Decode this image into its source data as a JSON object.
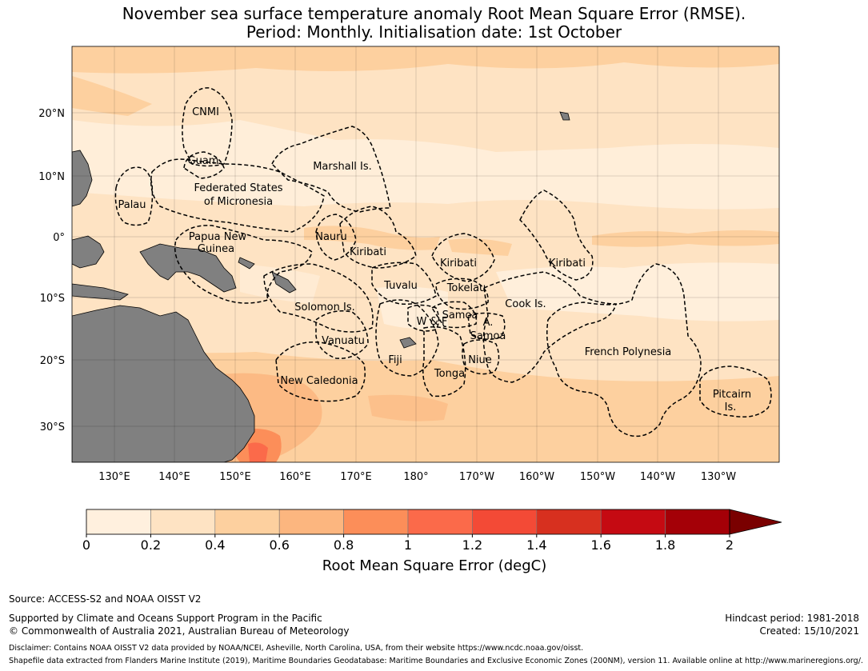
{
  "title": {
    "line1": "November sea surface temperature anomaly Root Mean Square Error (RMSE).",
    "line2": "Period: Monthly. Initialisation date: 1st October"
  },
  "map": {
    "lat_ticks": [
      "20°N",
      "10°N",
      "0°",
      "10°S",
      "20°S",
      "30°S"
    ],
    "lon_ticks": [
      "130°E",
      "140°E",
      "150°E",
      "160°E",
      "170°E",
      "180°",
      "170°W",
      "160°W",
      "150°W",
      "140°W",
      "130°W"
    ],
    "regions": [
      {
        "id": "cnmi",
        "label": "CNMI"
      },
      {
        "id": "guam",
        "label": "Guam"
      },
      {
        "id": "marshall",
        "label": "Marshall Is."
      },
      {
        "id": "palau",
        "label": "Palau"
      },
      {
        "id": "fsm-1",
        "label": "Federated States"
      },
      {
        "id": "fsm-2",
        "label": "of Micronesia"
      },
      {
        "id": "png-1",
        "label": "Papua New"
      },
      {
        "id": "png-2",
        "label": "Guinea"
      },
      {
        "id": "nauru",
        "label": "Nauru"
      },
      {
        "id": "kiribati-w",
        "label": "Kiribati"
      },
      {
        "id": "kiribati-c",
        "label": "Kiribati"
      },
      {
        "id": "kiribati-e",
        "label": "Kiribati"
      },
      {
        "id": "tuvalu",
        "label": "Tuvalu"
      },
      {
        "id": "tokelau",
        "label": "Tokelau"
      },
      {
        "id": "cook",
        "label": "Cook Is."
      },
      {
        "id": "solomon",
        "label": "Solomon Is."
      },
      {
        "id": "samoa",
        "label": "Samoa"
      },
      {
        "id": "wf",
        "label": "W & F"
      },
      {
        "id": "american-samoa-a",
        "label": "A."
      },
      {
        "id": "american-samoa-samoa",
        "label": "Samoa"
      },
      {
        "id": "vanuatu",
        "label": "Vanuatu"
      },
      {
        "id": "fiji",
        "label": "Fiji"
      },
      {
        "id": "niue",
        "label": "Niue"
      },
      {
        "id": "tonga",
        "label": "Tonga"
      },
      {
        "id": "french-polynesia",
        "label": "French Polynesia"
      },
      {
        "id": "new-caledonia",
        "label": "New Caledonia"
      },
      {
        "id": "pitcairn-1",
        "label": "Pitcairn"
      },
      {
        "id": "pitcairn-2",
        "label": "Is."
      }
    ]
  },
  "colorbar": {
    "ticks": [
      "0",
      "0.2",
      "0.4",
      "0.6",
      "0.8",
      "1",
      "1.2",
      "1.4",
      "1.6",
      "1.8",
      "2"
    ],
    "colors": [
      "#fff0de",
      "#fee3c3",
      "#fdd09f",
      "#fcb67f",
      "#fc8e59",
      "#fb6a4a",
      "#f34a36",
      "#d7301f",
      "#c50a12",
      "#a40007"
    ],
    "extend_color": "#7a0000",
    "label": "Root Mean Square Error (degC)"
  },
  "footer": {
    "source": "Source: ACCESS-S2 and NOAA OISST V2",
    "supported": "Supported by Climate and Oceans Support Program in the Pacific",
    "copyright": "© Commonwealth of Australia 2021, Australian Bureau of Meteorology",
    "hindcast": "Hindcast period: 1981-2018",
    "created": "Created: 15/10/2021",
    "disclaimer": "Disclaimer: Contains NOAA OISST V2 data provided by NOAA/NCEI, Asheville, North Carolina, USA, from their website https://www.ncdc.noaa.gov/oisst.",
    "shapefile": "Shapefile data extracted from Flanders Marine Institute (2019), Maritime Boundaries Geodatabase: Maritime Boundaries and Exclusive Economic Zones (200NM), version 11. Available online at http://www.marineregions.org/."
  }
}
